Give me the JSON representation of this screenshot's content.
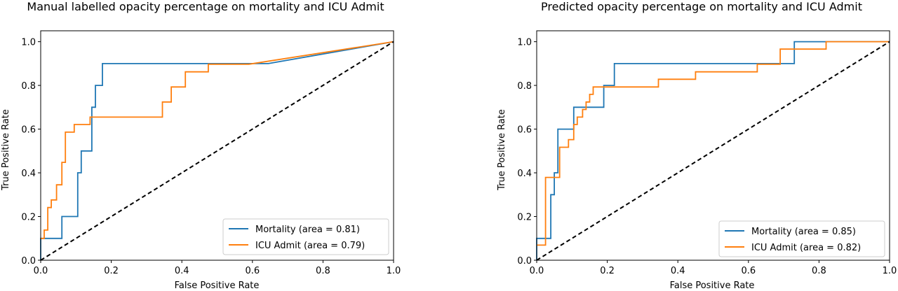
{
  "chart_data": [
    {
      "type": "line",
      "title": "Manual labelled opacity percentage on mortality and ICU Admit",
      "xlabel": "False Positive Rate",
      "ylabel": "True Positive Rate",
      "xlim": [
        0.0,
        1.0
      ],
      "ylim": [
        0.0,
        1.05
      ],
      "x_ticks": [
        "0.0",
        "0.2",
        "0.4",
        "0.6",
        "0.8",
        "1.0"
      ],
      "y_ticks": [
        "0.0",
        "0.2",
        "0.4",
        "0.6",
        "0.8",
        "1.0"
      ],
      "legend_position": "bottom-right",
      "grid": false,
      "series": [
        {
          "name": "Mortality (area = 0.81)",
          "color": "#1f77b4",
          "points": [
            [
              0.0,
              0.0
            ],
            [
              0.0,
              0.1
            ],
            [
              0.06,
              0.1
            ],
            [
              0.06,
              0.2
            ],
            [
              0.105,
              0.2
            ],
            [
              0.105,
              0.4
            ],
            [
              0.115,
              0.4
            ],
            [
              0.115,
              0.5
            ],
            [
              0.145,
              0.5
            ],
            [
              0.145,
              0.7
            ],
            [
              0.155,
              0.7
            ],
            [
              0.155,
              0.8
            ],
            [
              0.175,
              0.8
            ],
            [
              0.175,
              0.9
            ],
            [
              0.645,
              0.9
            ],
            [
              1.0,
              1.0
            ]
          ]
        },
        {
          "name": "ICU Admit (area = 0.79)",
          "color": "#ff7f0e",
          "points": [
            [
              0.0,
              0.1
            ],
            [
              0.01,
              0.1
            ],
            [
              0.01,
              0.138
            ],
            [
              0.02,
              0.138
            ],
            [
              0.02,
              0.241
            ],
            [
              0.03,
              0.241
            ],
            [
              0.03,
              0.276
            ],
            [
              0.045,
              0.276
            ],
            [
              0.045,
              0.345
            ],
            [
              0.06,
              0.345
            ],
            [
              0.06,
              0.448
            ],
            [
              0.07,
              0.448
            ],
            [
              0.07,
              0.586
            ],
            [
              0.095,
              0.586
            ],
            [
              0.095,
              0.621
            ],
            [
              0.14,
              0.621
            ],
            [
              0.14,
              0.655
            ],
            [
              0.345,
              0.655
            ],
            [
              0.345,
              0.724
            ],
            [
              0.37,
              0.724
            ],
            [
              0.37,
              0.793
            ],
            [
              0.41,
              0.793
            ],
            [
              0.41,
              0.862
            ],
            [
              0.475,
              0.862
            ],
            [
              0.475,
              0.897
            ],
            [
              0.59,
              0.897
            ],
            [
              1.0,
              1.0
            ]
          ]
        },
        {
          "name": "",
          "color": "#000000",
          "dashed": true,
          "points": [
            [
              0.0,
              0.0
            ],
            [
              1.0,
              1.0
            ]
          ]
        }
      ]
    },
    {
      "type": "line",
      "title": "Predicted opacity percentage on mortality and ICU Admit",
      "xlabel": "False Positive Rate",
      "ylabel": "True Positive Rate",
      "xlim": [
        0.0,
        1.0
      ],
      "ylim": [
        0.0,
        1.05
      ],
      "x_ticks": [
        "0.0",
        "0.2",
        "0.4",
        "0.6",
        "0.8",
        "1.0"
      ],
      "y_ticks": [
        "0.0",
        "0.2",
        "0.4",
        "0.6",
        "0.8",
        "1.0"
      ],
      "legend_position": "bottom-right",
      "grid": false,
      "series": [
        {
          "name": "Mortality (area = 0.85)",
          "color": "#1f77b4",
          "points": [
            [
              0.0,
              0.0
            ],
            [
              0.0,
              0.1
            ],
            [
              0.04,
              0.1
            ],
            [
              0.04,
              0.3
            ],
            [
              0.05,
              0.3
            ],
            [
              0.05,
              0.4
            ],
            [
              0.06,
              0.4
            ],
            [
              0.06,
              0.6
            ],
            [
              0.105,
              0.6
            ],
            [
              0.105,
              0.7
            ],
            [
              0.19,
              0.7
            ],
            [
              0.19,
              0.8
            ],
            [
              0.22,
              0.8
            ],
            [
              0.22,
              0.9
            ],
            [
              0.73,
              0.9
            ],
            [
              0.73,
              1.0
            ],
            [
              1.0,
              1.0
            ]
          ]
        },
        {
          "name": "ICU Admit (area = 0.82)",
          "color": "#ff7f0e",
          "points": [
            [
              0.0,
              0.069
            ],
            [
              0.025,
              0.069
            ],
            [
              0.025,
              0.379
            ],
            [
              0.065,
              0.379
            ],
            [
              0.065,
              0.517
            ],
            [
              0.09,
              0.517
            ],
            [
              0.09,
              0.552
            ],
            [
              0.105,
              0.552
            ],
            [
              0.105,
              0.621
            ],
            [
              0.115,
              0.621
            ],
            [
              0.115,
              0.655
            ],
            [
              0.13,
              0.655
            ],
            [
              0.13,
              0.69
            ],
            [
              0.14,
              0.69
            ],
            [
              0.14,
              0.724
            ],
            [
              0.15,
              0.724
            ],
            [
              0.15,
              0.759
            ],
            [
              0.16,
              0.759
            ],
            [
              0.16,
              0.793
            ],
            [
              0.345,
              0.793
            ],
            [
              0.345,
              0.828
            ],
            [
              0.45,
              0.828
            ],
            [
              0.45,
              0.862
            ],
            [
              0.625,
              0.862
            ],
            [
              0.625,
              0.897
            ],
            [
              0.69,
              0.897
            ],
            [
              0.69,
              0.966
            ],
            [
              0.82,
              0.966
            ],
            [
              0.82,
              1.0
            ],
            [
              1.0,
              1.0
            ]
          ]
        },
        {
          "name": "",
          "color": "#000000",
          "dashed": true,
          "points": [
            [
              0.0,
              0.0
            ],
            [
              1.0,
              1.0
            ]
          ]
        }
      ]
    }
  ]
}
